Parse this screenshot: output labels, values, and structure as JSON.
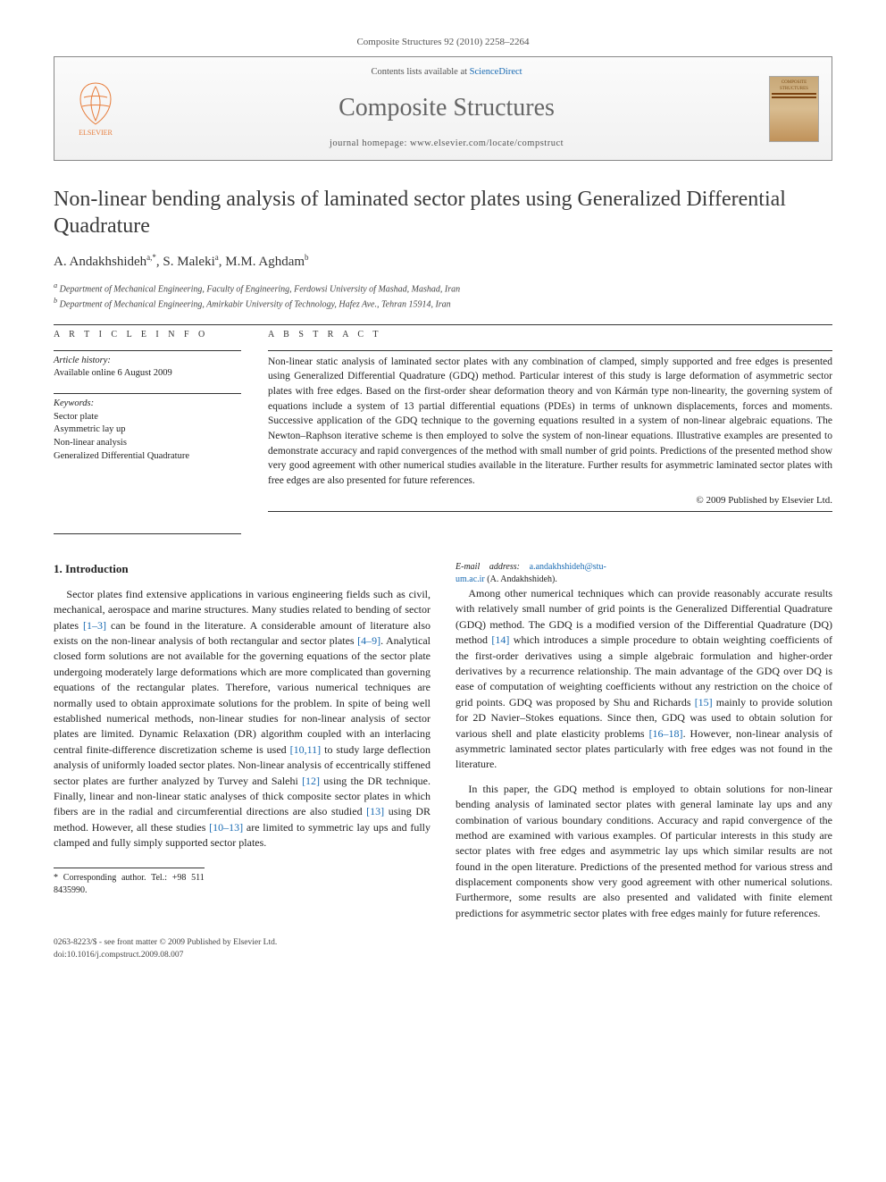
{
  "header": {
    "citation": "Composite Structures 92 (2010) 2258–2264",
    "contents_prefix": "Contents lists available at ",
    "contents_link": "ScienceDirect",
    "journal": "Composite Structures",
    "homepage_label": "journal homepage: ",
    "homepage_url": "www.elsevier.com/locate/compstruct",
    "publisher_label": "ELSEVIER",
    "cover_label_top": "COMPOSITE",
    "cover_label_bottom": "STRUCTURES"
  },
  "article": {
    "title": "Non-linear bending analysis of laminated sector plates using Generalized Differential Quadrature",
    "authors_html": "A. Andakhshideh",
    "author1": "A. Andakhshideh",
    "author1_sup": "a,*",
    "author2": "S. Maleki",
    "author2_sup": "a",
    "author3": "M.M. Aghdam",
    "author3_sup": "b",
    "affil_a": "Department of Mechanical Engineering, Faculty of Engineering, Ferdowsi University of Mashad, Mashad, Iran",
    "affil_b": "Department of Mechanical Engineering, Amirkabir University of Technology, Hafez Ave., Tehran 15914, Iran"
  },
  "info": {
    "section_label": "A R T I C L E   I N F O",
    "history_hd": "Article history:",
    "history_line": "Available online 6 August 2009",
    "keywords_hd": "Keywords:",
    "kw1": "Sector plate",
    "kw2": "Asymmetric lay up",
    "kw3": "Non-linear analysis",
    "kw4": "Generalized Differential Quadrature"
  },
  "abstract": {
    "section_label": "A B S T R A C T",
    "text": "Non-linear static analysis of laminated sector plates with any combination of clamped, simply supported and free edges is presented using Generalized Differential Quadrature (GDQ) method. Particular interest of this study is large deformation of asymmetric sector plates with free edges. Based on the first-order shear deformation theory and von Kármán type non-linearity, the governing system of equations include a system of 13 partial differential equations (PDEs) in terms of unknown displacements, forces and moments. Successive application of the GDQ technique to the governing equations resulted in a system of non-linear algebraic equations. The Newton–Raphson iterative scheme is then employed to solve the system of non-linear equations. Illustrative examples are presented to demonstrate accuracy and rapid convergences of the method with small number of grid points. Predictions of the presented method show very good agreement with other numerical studies available in the literature. Further results for asymmetric laminated sector plates with free edges are also presented for future references.",
    "copyright": "© 2009 Published by Elsevier Ltd."
  },
  "body": {
    "section1_hd": "1. Introduction",
    "p1": "Sector plates find extensive applications in various engineering fields such as civil, mechanical, aerospace and marine structures. Many studies related to bending of sector plates [1–3] can be found in the literature. A considerable amount of literature also exists on the non-linear analysis of both rectangular and sector plates [4–9]. Analytical closed form solutions are not available for the governing equations of the sector plate undergoing moderately large deformations which are more complicated than governing equations of the rectangular plates. Therefore, various numerical techniques are normally used to obtain approximate solutions for the problem. In spite of being well established numerical methods, non-linear studies for non-linear analysis of sector plates are limited. Dynamic Relaxation (DR) algorithm coupled with an interlacing central finite-difference discretization scheme is used [10,11] to study large deflection analysis of uniformly loaded sector plates. Non-linear analysis of eccentrically stiffened sector plates are further analyzed by Turvey and Salehi [12] using the DR technique. Finally, linear and non-linear static analyses of thick composite sector plates in which fibers are in the radial and circumferential directions are also studied [13] using DR method. However, all these studies [10–13] are limited to symmetric lay ups and fully clamped and fully simply supported sector plates.",
    "p2": "Among other numerical techniques which can provide reasonably accurate results with relatively small number of grid points is the Generalized Differential Quadrature (GDQ) method. The GDQ is a modified version of the Differential Quadrature (DQ) method [14] which introduces a simple procedure to obtain weighting coefficients of the first-order derivatives using a simple algebraic formulation and higher-order derivatives by a recurrence relationship. The main advantage of the GDQ over DQ is ease of computation of weighting coefficients without any restriction on the choice of grid points. GDQ was proposed by Shu and Richards [15] mainly to provide solution for 2D Navier–Stokes equations. Since then, GDQ was used to obtain solution for various shell and plate elasticity problems [16–18]. However, non-linear analysis of asymmetric laminated sector plates particularly with free edges was not found in the literature.",
    "p3": "In this paper, the GDQ method is employed to obtain solutions for non-linear bending analysis of laminated sector plates with general laminate lay ups and any combination of various boundary conditions. Accuracy and rapid convergence of the method are examined with various examples. Of particular interests in this study are sector plates with free edges and asymmetric lay ups which similar results are not found in the open literature. Predictions of the presented method for various stress and displacement components show very good agreement with other numerical solutions. Furthermore, some results are also presented and validated with finite element predictions for asymmetric sector plates with free edges mainly for future references."
  },
  "footnote": {
    "corr": "* Corresponding author. Tel.: +98 511 8435990.",
    "email_label": "E-mail address:",
    "email": "a.andakhshideh@stu-um.ac.ir",
    "email_suffix": "(A. Andakhshideh)."
  },
  "footer": {
    "line1": "0263-8223/$ - see front matter © 2009 Published by Elsevier Ltd.",
    "line2": "doi:10.1016/j.compstruct.2009.08.007"
  },
  "colors": {
    "link": "#1a6bb3",
    "text": "#222222",
    "muted": "#555555",
    "rule": "#333333",
    "logo": "#e77c3a"
  }
}
